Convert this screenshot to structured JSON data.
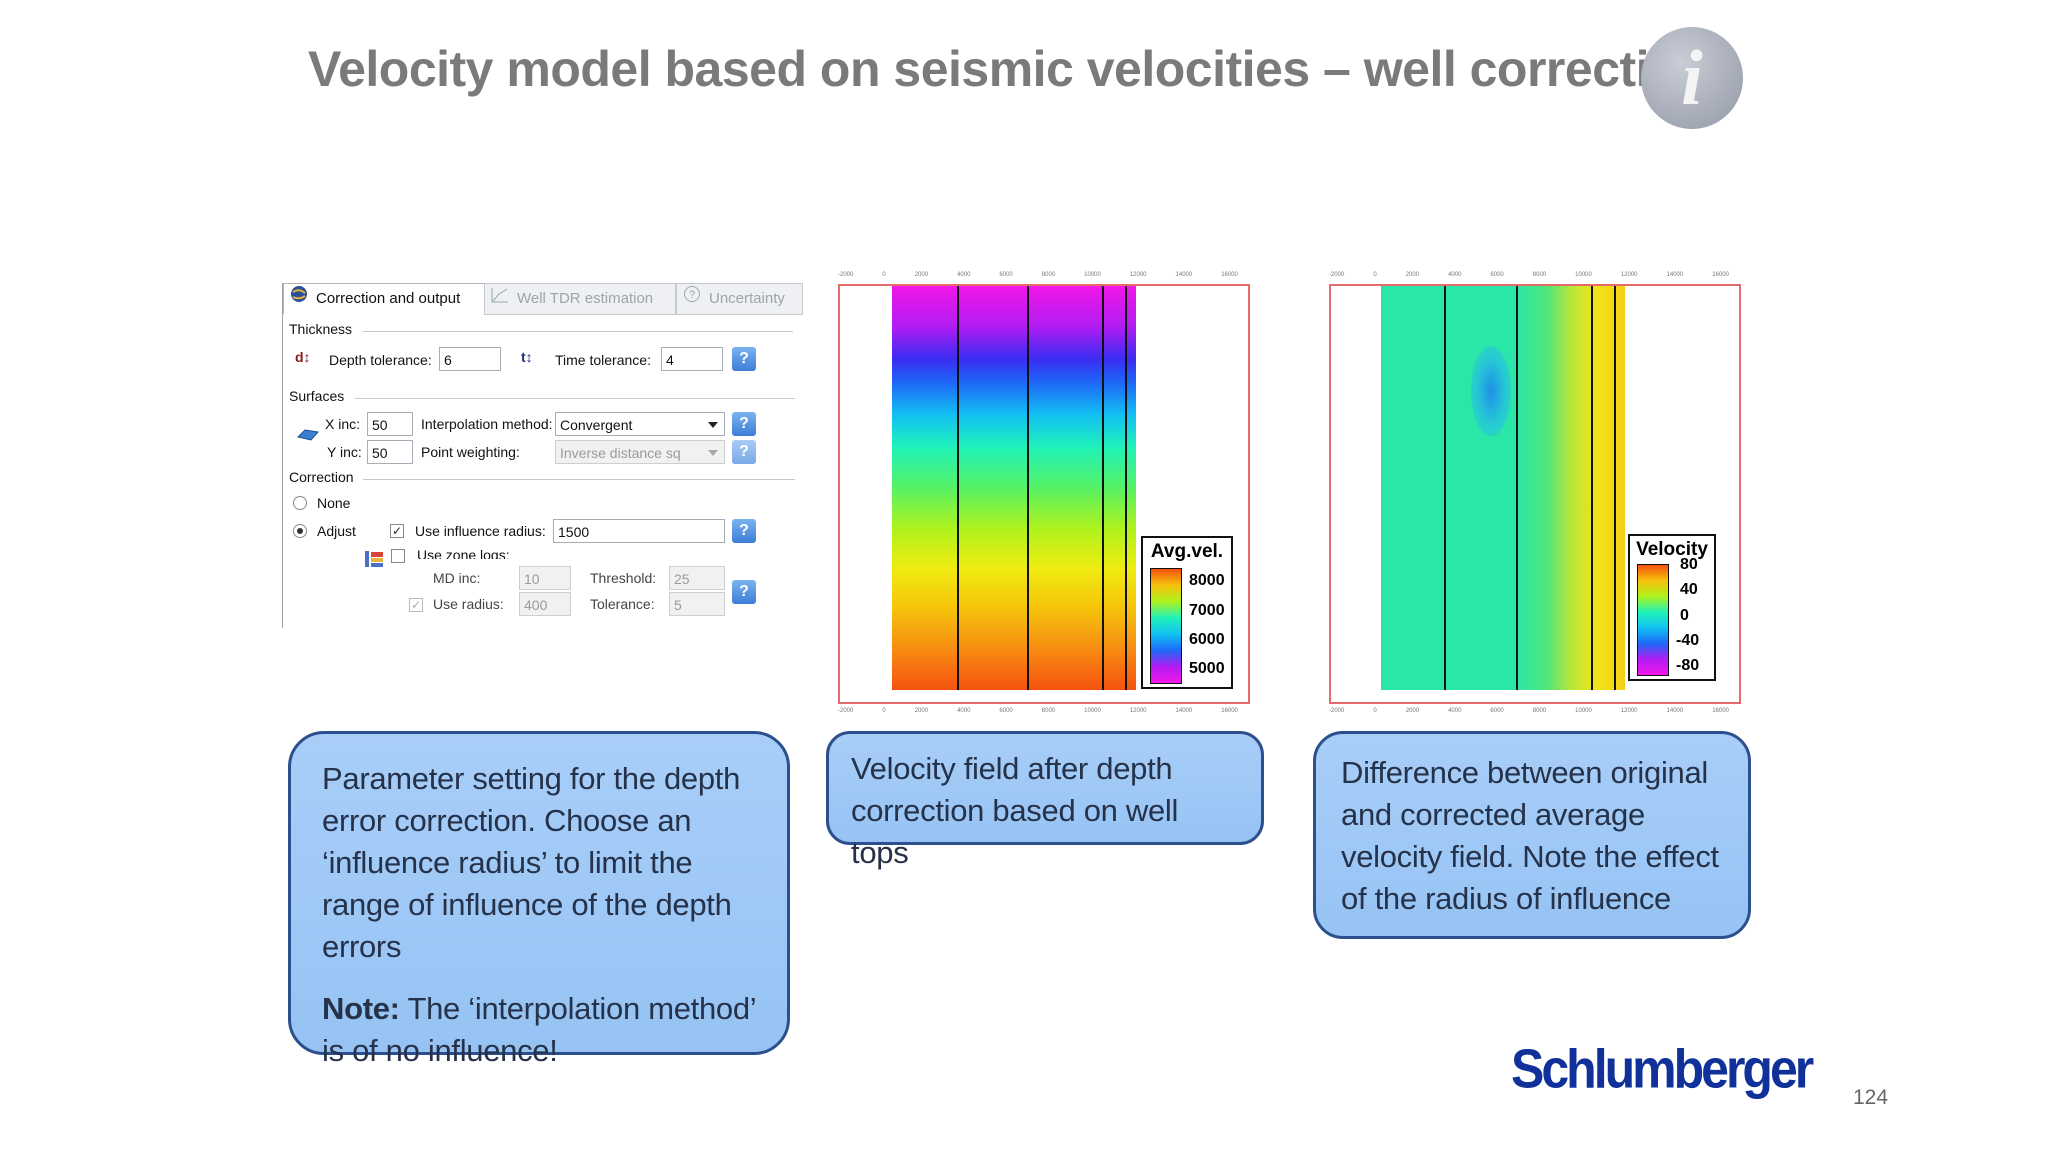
{
  "slide": {
    "title": "Velocity model based on seismic velocities – well correction",
    "page_number": "124",
    "logo_text": "Schlumberger",
    "info_icon": "i"
  },
  "dialog": {
    "tabs": [
      {
        "label": "Correction and output",
        "icon": "globe-icon",
        "active": true
      },
      {
        "label": "Well TDR estimation",
        "icon": "chart-icon",
        "active": false
      },
      {
        "label": "Uncertainty",
        "icon": "question-circle-icon",
        "active": false
      }
    ],
    "thickness": {
      "section": "Thickness",
      "depth_tolerance_label": "Depth tolerance:",
      "depth_tolerance": "6",
      "time_tolerance_label": "Time tolerance:",
      "time_tolerance": "4"
    },
    "surfaces": {
      "section": "Surfaces",
      "xinc_label": "X inc:",
      "xinc": "50",
      "yinc_label": "Y inc:",
      "yinc": "50",
      "interp_label": "Interpolation method:",
      "interp_value": "Convergent",
      "weighting_label": "Point weighting:",
      "weighting_value": "Inverse distance sq"
    },
    "correction": {
      "section": "Correction",
      "none_label": "None",
      "adjust_label": "Adjust",
      "selected": "Adjust",
      "use_influence_label": "Use influence radius:",
      "use_influence_checked": true,
      "influence_value": "1500",
      "use_zone_logs_label": "Use zone logs:",
      "use_zone_logs_checked": false,
      "md_inc_label": "MD inc:",
      "md_inc": "10",
      "threshold_label": "Threshold:",
      "threshold": "25",
      "use_radius_label": "Use radius:",
      "use_radius": "400",
      "tolerance_label": "Tolerance:",
      "tolerance": "5"
    },
    "help_glyph": "?"
  },
  "plot_left": {
    "legend_title": "Avg.vel.",
    "legend_ticks": [
      "8000",
      "7000",
      "6000",
      "5000"
    ],
    "axis_ticks": [
      "-2000",
      "0",
      "2000",
      "4000",
      "6000",
      "8000",
      "10000",
      "12000",
      "14000",
      "16000"
    ]
  },
  "plot_right": {
    "legend_title": "Velocity",
    "legend_ticks": [
      "80",
      "40",
      "0",
      "-40",
      "-80"
    ],
    "axis_ticks": [
      "-2000",
      "0",
      "2000",
      "4000",
      "6000",
      "8000",
      "10000",
      "12000",
      "14000",
      "16000"
    ]
  },
  "callouts": {
    "left_text": "Parameter setting for the depth error correction. Choose an ‘influence radius’ to limit the range of influence of the depth errors",
    "left_note_label": "Note:",
    "left_note_text": " The ‘interpolation method’ is of no influence!",
    "middle_text": "Velocity field after depth correction based on well tops",
    "right_text": "Difference between original and corrected average velocity field. Note the effect of the radius of influence"
  },
  "colors": {
    "callout_fill": "#9ec8f6",
    "callout_border": "#2c4f8e",
    "title_gray": "#7a7a7a",
    "logo_blue": "#10309a"
  }
}
